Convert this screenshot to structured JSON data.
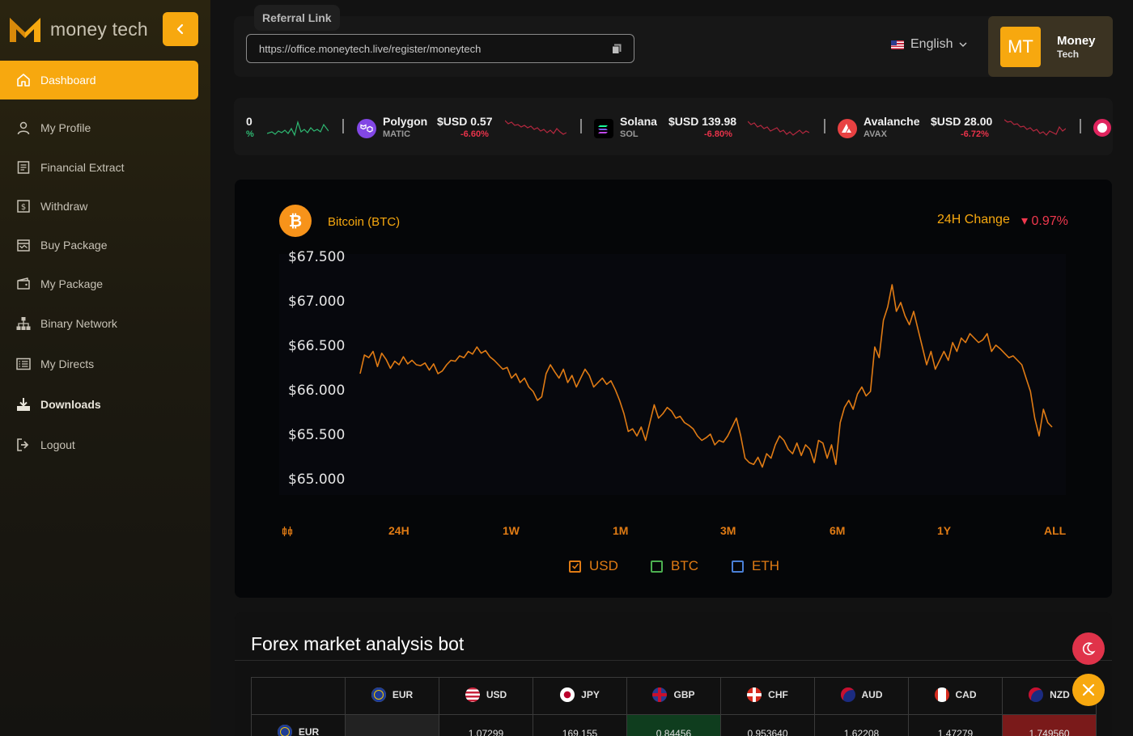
{
  "sidebar": {
    "brand": "money tech",
    "items": [
      {
        "label": "Dashboard",
        "icon": "home-icon"
      },
      {
        "label": "My Profile",
        "icon": "user-icon"
      },
      {
        "label": "Financial Extract",
        "icon": "document-icon"
      },
      {
        "label": "Withdraw",
        "icon": "dollar-icon"
      },
      {
        "label": "Buy Package",
        "icon": "store-icon"
      },
      {
        "label": "My Package",
        "icon": "wallet-icon"
      },
      {
        "label": "Binary Network",
        "icon": "network-icon"
      },
      {
        "label": "My Directs",
        "icon": "list-icon"
      },
      {
        "label": "Downloads",
        "icon": "download-icon"
      },
      {
        "label": "Logout",
        "icon": "logout-icon"
      }
    ]
  },
  "topbar": {
    "referral_label": "Referral Link",
    "referral_url": "https://office.moneytech.live/register/moneytech",
    "language": "English",
    "user": {
      "initials": "MT",
      "name": "Money",
      "sub": "Tech"
    }
  },
  "ticker": {
    "partial": {
      "price": "0",
      "change": "%"
    },
    "items": [
      {
        "name": "Polygon",
        "symbol": "MATIC",
        "price": "$USD 0.57",
        "change": "-6.60%",
        "color": "#8247e5"
      },
      {
        "name": "Solana",
        "symbol": "SOL",
        "price": "$USD 139.98",
        "change": "-6.80%",
        "color": "#000000"
      },
      {
        "name": "Avalanche",
        "symbol": "AVAX",
        "price": "$USD 28.00",
        "change": "-6.72%",
        "color": "#e84142"
      }
    ]
  },
  "chart_card": {
    "title": "Bitcoin (BTC)",
    "change_label": "24H Change",
    "change_value": "▾ 0.97%",
    "ranges": [
      "24H",
      "1W",
      "1M",
      "3M",
      "6M",
      "1Y",
      "ALL"
    ],
    "currencies": [
      {
        "label": "USD",
        "checked": true,
        "color": "#e07b14"
      },
      {
        "label": "BTC",
        "checked": false,
        "color": "#4caf50"
      },
      {
        "label": "ETH",
        "checked": false,
        "color": "#4a7fd6"
      }
    ]
  },
  "chart_data": {
    "type": "line",
    "title": "",
    "xlabel": "",
    "ylabel": "",
    "yticks": [
      "$67.500",
      "$67.000",
      "$66.500",
      "$66.000",
      "$65.500",
      "$65.000"
    ],
    "ylim": [
      65000,
      67500
    ],
    "grid": false,
    "series": [
      {
        "color": "#e07b14",
        "values": [
          66200,
          66410,
          66380,
          66450,
          66280,
          66430,
          66360,
          66260,
          66340,
          66300,
          66390,
          66310,
          66350,
          66300,
          66290,
          66320,
          66240,
          66310,
          66200,
          66230,
          66300,
          66350,
          66340,
          66400,
          66380,
          66450,
          66420,
          66500,
          66430,
          66460,
          66390,
          66350,
          66300,
          66250,
          66270,
          66150,
          66200,
          66100,
          66150,
          66050,
          66000,
          65900,
          65940,
          66200,
          66300,
          66220,
          66150,
          66250,
          66100,
          66180,
          66050,
          66150,
          66250,
          66180,
          66050,
          66100,
          66150,
          66080,
          66120,
          66020,
          65900,
          65750,
          65550,
          65580,
          65500,
          65600,
          65450,
          65650,
          65850,
          65700,
          65750,
          65820,
          65780,
          65700,
          65720,
          65650,
          65620,
          65580,
          65500,
          65450,
          65480,
          65520,
          65400,
          65450,
          65430,
          65500,
          65600,
          65700,
          65500,
          65250,
          65200,
          65180,
          65260,
          65150,
          65300,
          65250,
          65400,
          65500,
          65450,
          65350,
          65300,
          65420,
          65280,
          65400,
          65350,
          65200,
          65450,
          65420,
          65250,
          65400,
          65180,
          65650,
          65820,
          65900,
          65800,
          65970,
          66050,
          65950,
          66000,
          66500,
          66380,
          66800,
          66950,
          67200,
          66900,
          67000,
          66850,
          66750,
          66900,
          66700,
          66500,
          66300,
          66450,
          66250,
          66350,
          66450,
          66350,
          66550,
          66450,
          66600,
          66550,
          66650,
          66600,
          66550,
          66580,
          66650,
          66450,
          66520,
          66480,
          66430,
          66380,
          66400,
          66350,
          66300,
          66150,
          66000,
          65700,
          65500,
          65800,
          65650,
          65600
        ]
      }
    ]
  },
  "forex": {
    "title": "Forex market analysis bot",
    "columns": [
      {
        "code": "EUR",
        "flag": "#1e3c96"
      },
      {
        "code": "USD",
        "flag": "#c8233b"
      },
      {
        "code": "JPY",
        "flag": "#ffffff"
      },
      {
        "code": "GBP",
        "flag": "#2a3b8f"
      },
      {
        "code": "CHF",
        "flag": "#d52b1e"
      },
      {
        "code": "AUD",
        "flag": "#1b2b80"
      },
      {
        "code": "CAD",
        "flag": "#ffffff"
      },
      {
        "code": "NZD",
        "flag": "#1b2b80"
      }
    ],
    "rows": [
      {
        "code": "EUR",
        "flag": "#1e3c96",
        "values": [
          "",
          "1.07299",
          "169.155",
          "0.84456",
          "0.953640",
          "1.62208",
          "1.47279",
          "1.749560"
        ]
      }
    ],
    "cell_colors": {
      "gbp": "#0f3d1e",
      "nzd": "#7a1a1a",
      "self": "#222222"
    }
  }
}
